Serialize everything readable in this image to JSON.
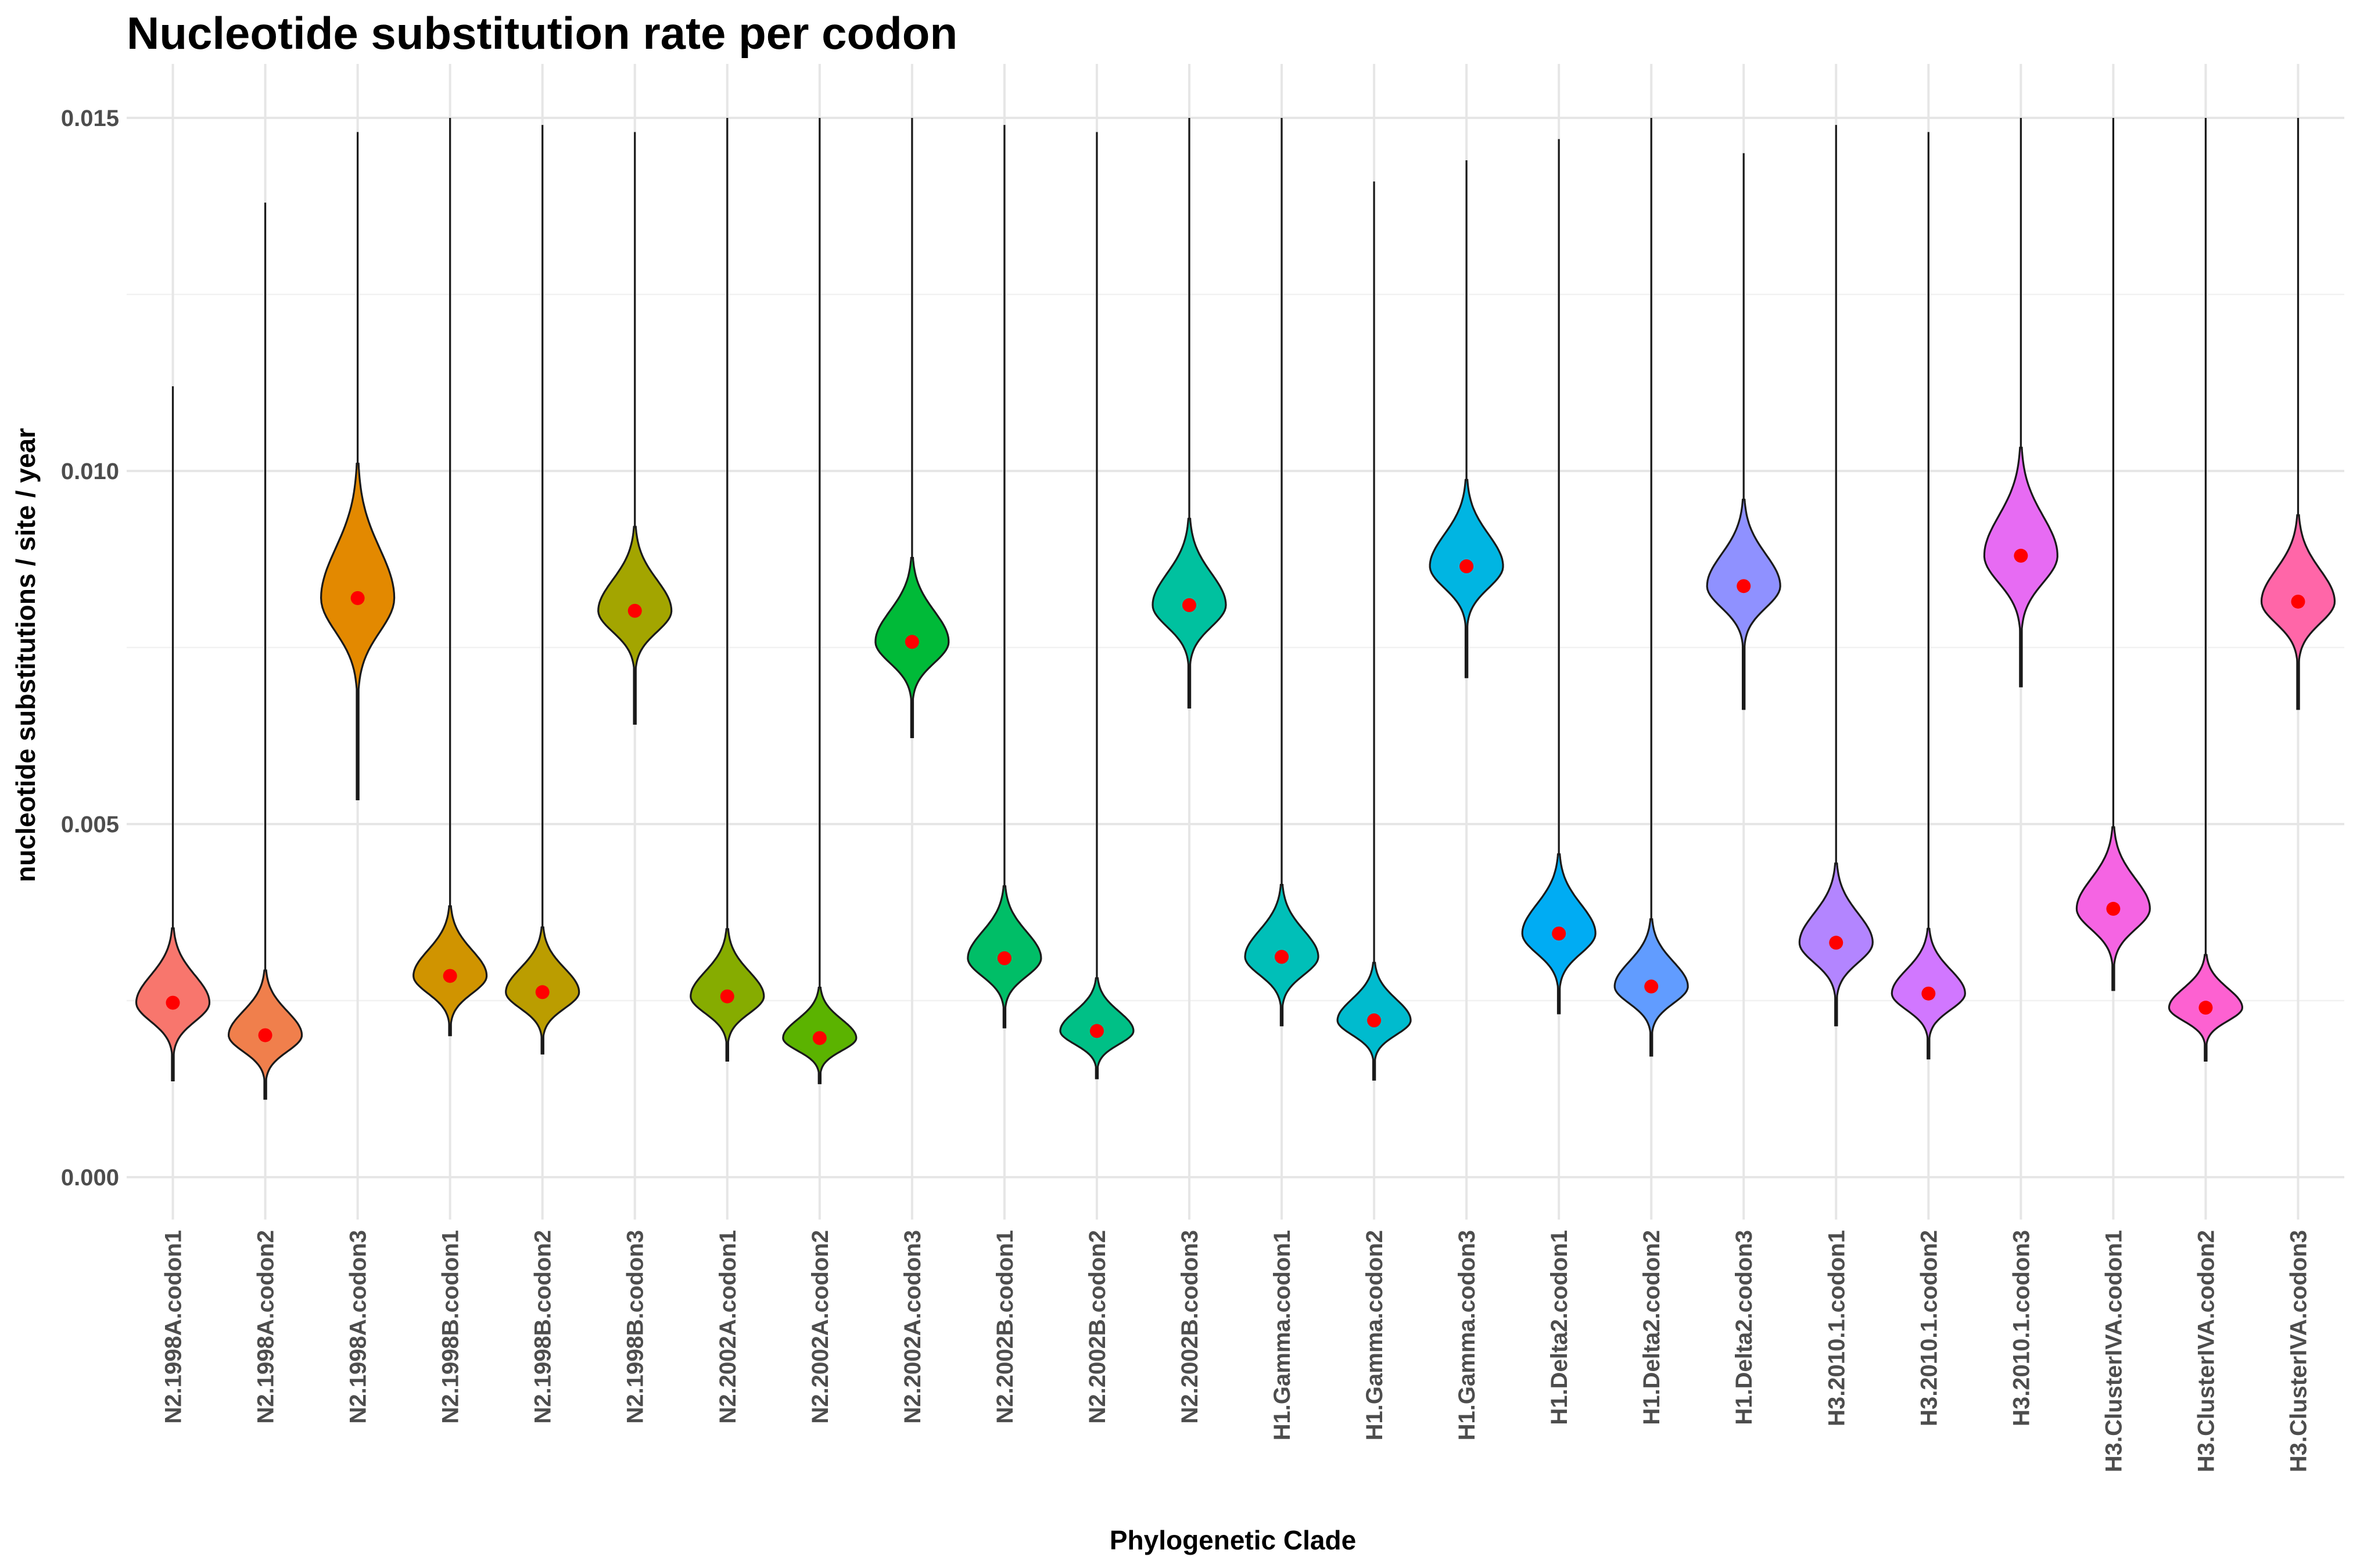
{
  "chart_data": {
    "type": "violin",
    "title": "Nucleotide substitution rate per codon",
    "xlabel": "Phylogenetic Clade",
    "ylabel": "nucleotide substitutions / site / year",
    "ylim": [
      -0.0007,
      0.0158
    ],
    "yticks": [
      "0.000",
      "0.005",
      "0.010",
      "0.015"
    ],
    "ytick_values": [
      0,
      0.005,
      0.01,
      0.015
    ],
    "grid": true,
    "legend": "none",
    "categories": [
      "N2.1998A.codon1",
      "N2.1998A.codon2",
      "N2.1998A.codon3",
      "N2.1998B.codon1",
      "N2.1998B.codon2",
      "N2.1998B.codon3",
      "N2.2002A.codon1",
      "N2.2002A.codon2",
      "N2.2002A.codon3",
      "N2.2002B.codon1",
      "N2.2002B.codon2",
      "N2.2002B.codon3",
      "H1.Gamma.codon1",
      "H1.Gamma.codon2",
      "H1.Gamma.codon3",
      "H1.Delta2.codon1",
      "H1.Delta2.codon2",
      "H1.Delta2.codon3",
      "H3.2010.1.codon1",
      "H3.2010.1.codon2",
      "H3.2010.1.codon3",
      "H3.ClusterIVA.codon1",
      "H3.ClusterIVA.codon2",
      "H3.ClusterIVA.codon3"
    ],
    "mean": [
      0.00247,
      0.00201,
      0.0082,
      0.00285,
      0.00262,
      0.00802,
      0.00256,
      0.00197,
      0.00758,
      0.0031,
      0.00207,
      0.0081,
      0.00312,
      0.00222,
      0.00865,
      0.00345,
      0.0027,
      0.00837,
      0.00332,
      0.0026,
      0.0088,
      0.0038,
      0.0024,
      0.00815
    ],
    "min": [
      0.00137,
      0.00111,
      0.00535,
      0.00201,
      0.00175,
      0.00642,
      0.00165,
      0.00133,
      0.00623,
      0.00212,
      0.0014,
      0.00665,
      0.00215,
      0.00138,
      0.00708,
      0.00232,
      0.00172,
      0.00663,
      0.00215,
      0.00168,
      0.00695,
      0.00265,
      0.00165,
      0.00663
    ],
    "max": [
      0.0112,
      0.0138,
      0.0148,
      0.015,
      0.0149,
      0.0148,
      0.015,
      0.015,
      0.015,
      0.0149,
      0.0148,
      0.015,
      0.015,
      0.0141,
      0.0144,
      0.0147,
      0.015,
      0.0145,
      0.0149,
      0.0148,
      0.015,
      0.015,
      0.015,
      0.015
    ],
    "spread": [
      0.00031,
      0.00027,
      0.00056,
      0.00029,
      0.00027,
      0.00035,
      0.00028,
      0.00021,
      0.00035,
      0.0003,
      0.00022,
      0.00036,
      0.0003,
      0.00024,
      0.00036,
      0.00033,
      0.00028,
      0.00036,
      0.00033,
      0.00027,
      0.00045,
      0.00034,
      0.00022,
      0.00036
    ],
    "colors": [
      "#F8766D",
      "#F07F4C",
      "#E38900",
      "#D09400",
      "#BB9D00",
      "#A3A500",
      "#86AC00",
      "#5BB300",
      "#00BA38",
      "#00BE67",
      "#00C086",
      "#00C19F",
      "#00BFB8",
      "#00BBCE",
      "#00B5E2",
      "#00ACF3",
      "#619CFF",
      "#8F91FF",
      "#B385FF",
      "#D177FF",
      "#E76BF3",
      "#F564E3",
      "#FD61D1",
      "#FF66A8"
    ]
  }
}
